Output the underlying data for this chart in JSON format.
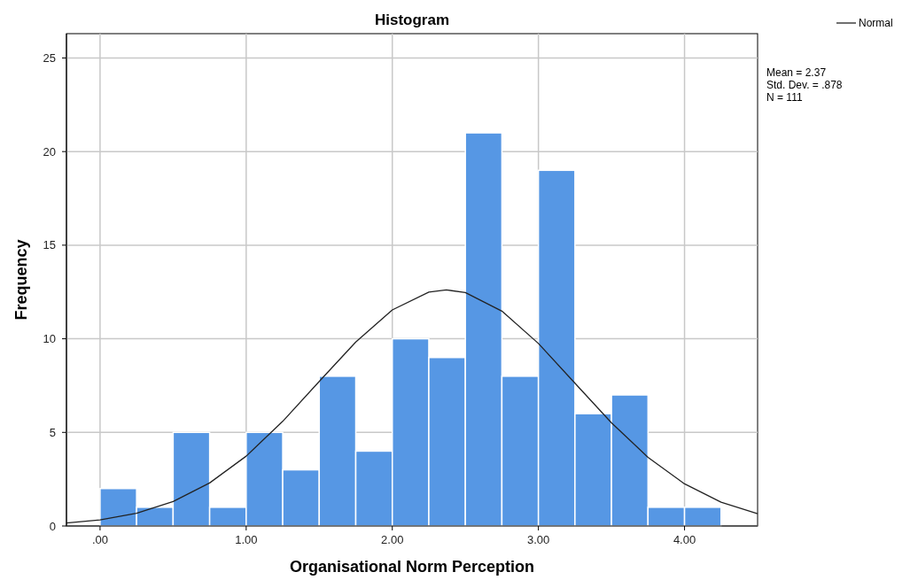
{
  "chart_data": {
    "type": "histogram",
    "title": "Histogram",
    "xlabel": "Organisational Norm Perception",
    "ylabel": "Frequency",
    "bins": [
      0,
      0.25,
      0.5,
      0.75,
      1,
      1.25,
      1.5,
      1.75,
      2,
      2.25,
      2.5,
      2.75,
      3,
      3.25,
      3.5,
      3.75,
      4,
      4.25
    ],
    "values": [
      2,
      1,
      5,
      1,
      5,
      3,
      8,
      4,
      10,
      9,
      21,
      8,
      19,
      6,
      7,
      1,
      1
    ],
    "color": "#5697e4",
    "series": [
      {
        "type": "line",
        "name": "Normal",
        "color": "#222222",
        "x": [
          -0.23,
          0,
          0.25,
          0.5,
          0.75,
          1,
          1.25,
          1.5,
          1.75,
          2,
          2.25,
          2.37,
          2.5,
          2.75,
          3,
          3.25,
          3.5,
          3.75,
          4,
          4.25,
          4.5
        ],
        "values": [
          0.16,
          0.33,
          0.68,
          1.31,
          2.3,
          3.73,
          5.59,
          7.72,
          9.83,
          11.54,
          12.49,
          12.61,
          12.47,
          11.48,
          9.75,
          7.63,
          5.51,
          3.67,
          2.25,
          1.27,
          0.66
        ]
      }
    ],
    "xlim": [
      -0.23,
      4.5
    ],
    "xticks": [
      {
        "value": 0,
        "label": ".00"
      },
      {
        "value": 1,
        "label": "1.00"
      },
      {
        "value": 2,
        "label": "2.00"
      },
      {
        "value": 3,
        "label": "3.00"
      },
      {
        "value": 4,
        "label": "4.00"
      }
    ],
    "ylim": [
      0,
      26.3
    ],
    "yticks": [
      0,
      5,
      10,
      15,
      20,
      25
    ],
    "grid": true,
    "legend": "top right",
    "annotations": [
      "Mean = 2.37",
      "Std. Dev. = .878",
      "N = 111"
    ]
  }
}
